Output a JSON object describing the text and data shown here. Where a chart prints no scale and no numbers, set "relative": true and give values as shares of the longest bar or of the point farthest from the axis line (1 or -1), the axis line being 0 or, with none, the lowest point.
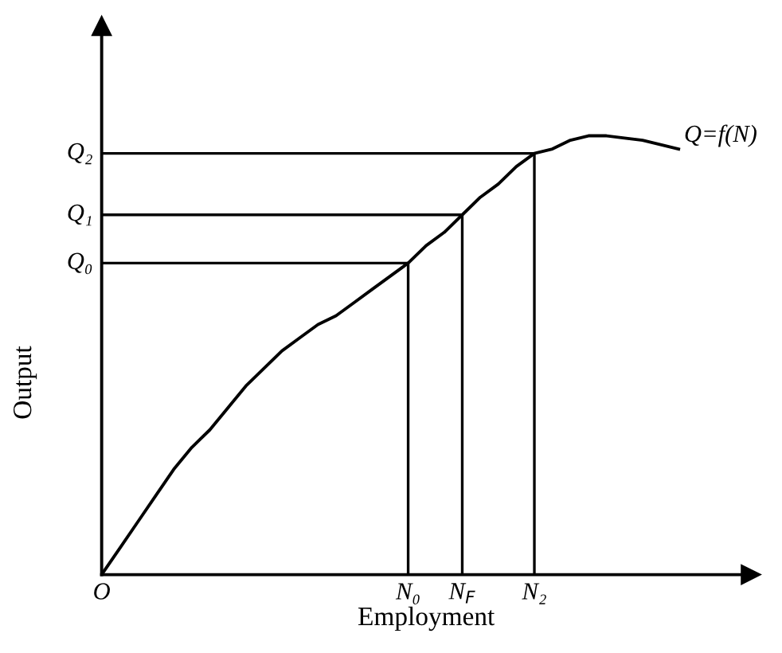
{
  "chart_data": {
    "type": "line",
    "relative": true,
    "xlabel": "Employment",
    "ylabel": "Output",
    "tick_labels": "x",
    "categories": [
      "O",
      null,
      null,
      null,
      null,
      null,
      null,
      null,
      null,
      null,
      null,
      null,
      null,
      null,
      null,
      null,
      null,
      "N₀",
      null,
      null,
      "N$_{F}$",
      null,
      null,
      null,
      "N₂",
      null,
      null,
      null,
      null,
      null,
      null,
      null,
      null
    ],
    "series": [
      {
        "name": "Q=f(N)",
        "color": "#000000",
        "values": [
          0,
          0.06,
          0.12,
          0.18,
          0.24,
          0.29,
          0.33,
          0.38,
          0.43,
          0.47,
          0.51,
          0.54,
          0.57,
          0.59,
          0.62,
          0.65,
          0.68,
          0.71,
          0.75,
          0.78,
          0.82,
          0.86,
          0.89,
          0.93,
          0.96,
          0.97,
          0.99,
          1.0,
          1.0,
          0.995,
          0.99,
          0.98,
          0.97
        ]
      }
    ],
    "annotations": [
      "Q₀",
      "Q₁",
      "Q₂"
    ]
  }
}
